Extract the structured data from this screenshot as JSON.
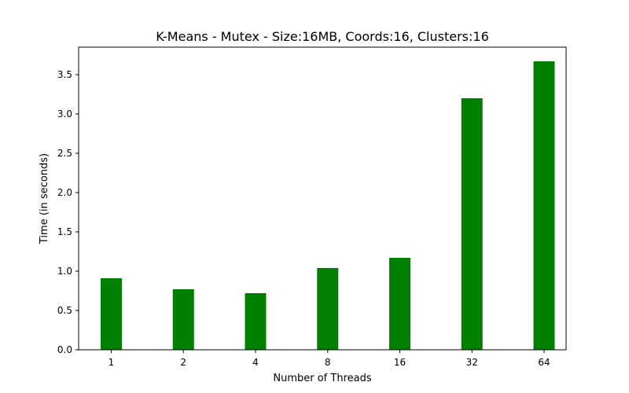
{
  "chart_data": {
    "type": "bar",
    "title": "K-Means - Mutex - Size:16MB, Coords:16, Clusters:16",
    "xlabel": "Number of Threads",
    "ylabel": "Time (in seconds)",
    "categories": [
      "1",
      "2",
      "4",
      "8",
      "16",
      "32",
      "64"
    ],
    "values": [
      0.91,
      0.77,
      0.72,
      1.04,
      1.17,
      3.2,
      3.67
    ],
    "ylim": [
      0,
      3.85
    ],
    "yticks": [
      "0.0",
      "0.5",
      "1.0",
      "1.5",
      "2.0",
      "2.5",
      "3.0",
      "3.5"
    ],
    "bar_color": "#008000",
    "grid": false,
    "legend": "none"
  }
}
